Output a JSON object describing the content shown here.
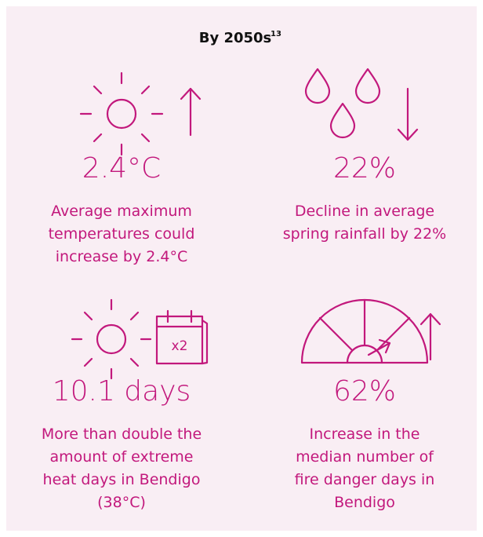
{
  "header": {
    "title": "By 2050s",
    "superscript": "13"
  },
  "items": [
    {
      "value": "2.4°C",
      "lines": [
        "Average maximum",
        "temperatures could",
        "increase by 2.4°C"
      ]
    },
    {
      "value": "22%",
      "lines": [
        "Decline in average",
        "spring rainfall by 22%"
      ]
    },
    {
      "value": "10.1 days",
      "icon_label": "x2",
      "lines": [
        "More than double the",
        "amount of extreme",
        "heat days in Bendigo",
        "(38°C)"
      ]
    },
    {
      "value": "62%",
      "lines": [
        "Increase in the",
        "median number of",
        "fire danger days in",
        "Bendigo"
      ]
    }
  ]
}
